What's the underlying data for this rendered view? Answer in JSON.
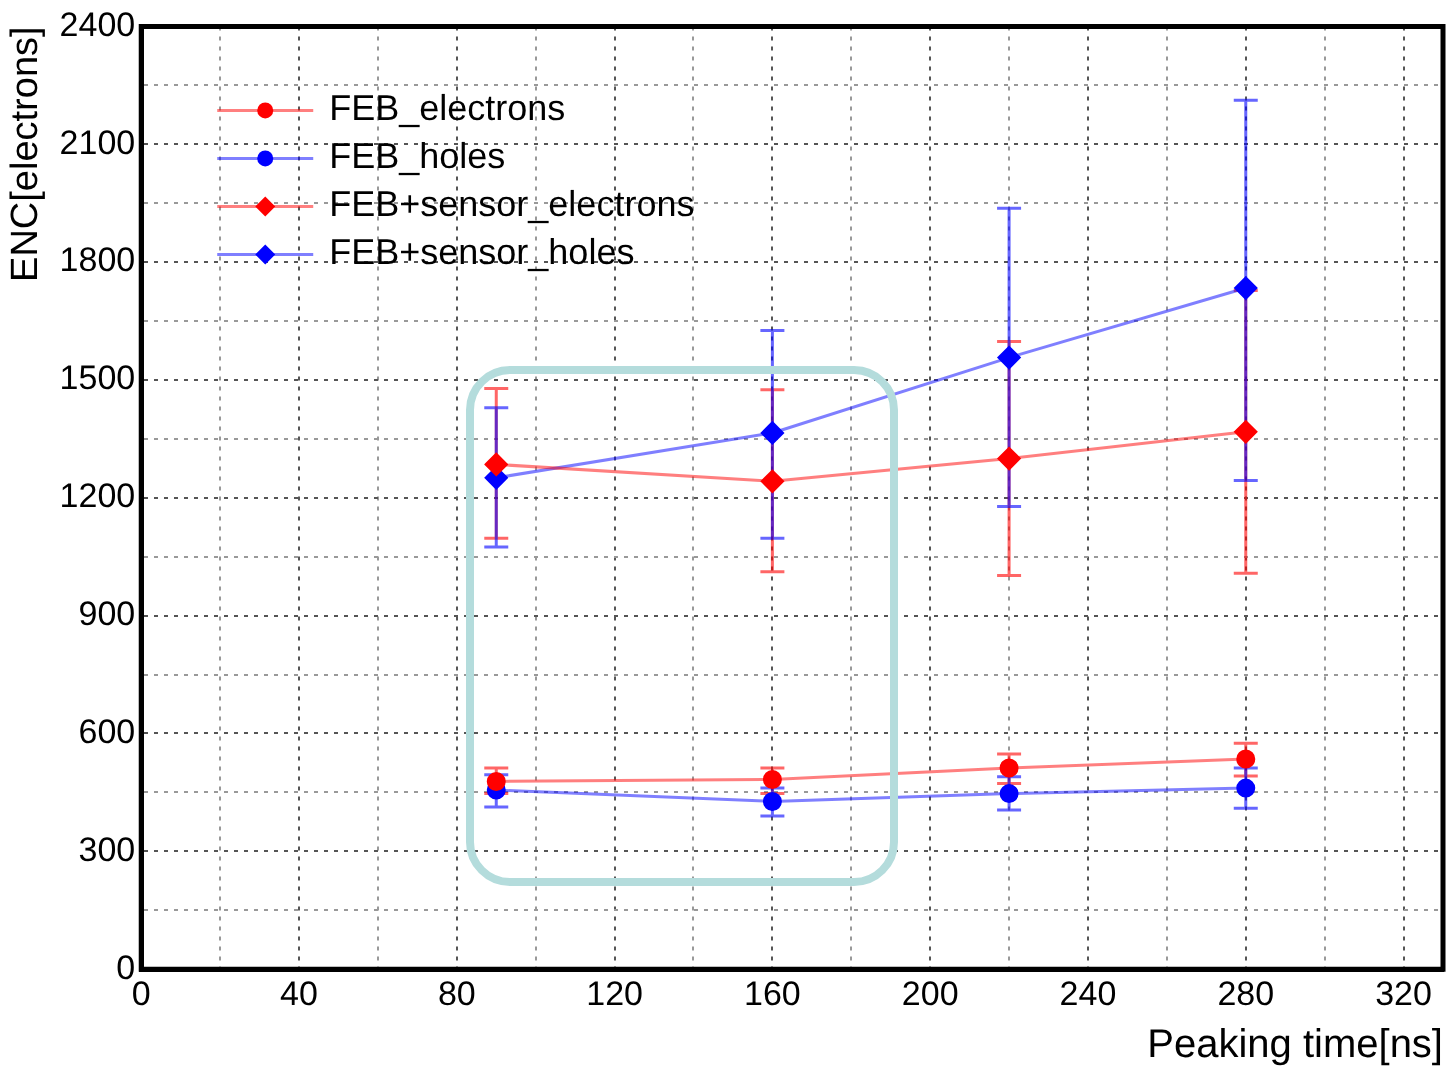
{
  "chart_data": {
    "type": "line",
    "xlabel": "Peaking time[ns]",
    "ylabel": "ENC[electrons]",
    "x": [
      90,
      160,
      220,
      280
    ],
    "series": [
      {
        "name": "FEB_electrons",
        "color": "#ff0000",
        "marker": "circle",
        "values": [
          478,
          483,
          512,
          535
        ],
        "errors": [
          [
            447,
            512
          ],
          [
            447,
            512
          ],
          [
            473,
            548
          ],
          [
            492,
            575
          ]
        ]
      },
      {
        "name": "FEB_holes",
        "color": "#0000ff",
        "marker": "circle",
        "values": [
          456,
          427,
          447,
          461
        ],
        "errors": [
          [
            413,
            495
          ],
          [
            390,
            461
          ],
          [
            405,
            490
          ],
          [
            410,
            512
          ]
        ]
      },
      {
        "name": "FEB+sensor_electrons",
        "color": "#ff0000",
        "marker": "diamond",
        "values": [
          1285,
          1242,
          1300,
          1368
        ],
        "errors": [
          [
            1097,
            1478
          ],
          [
            1012,
            1475
          ],
          [
            1002,
            1598
          ],
          [
            1008,
            1728
          ]
        ]
      },
      {
        "name": "FEB+sensor_holes",
        "color": "#0000ff",
        "marker": "diamond",
        "values": [
          1251,
          1365,
          1557,
          1734
        ],
        "errors": [
          [
            1075,
            1429
          ],
          [
            1097,
            1626
          ],
          [
            1178,
            1937
          ],
          [
            1244,
            2212
          ]
        ]
      }
    ],
    "xlim": [
      0,
      330
    ],
    "xticks": [
      0,
      {
        "value": 20,
        "label": null
      },
      40,
      {
        "value": 60,
        "label": null
      },
      80,
      {
        "value": 100,
        "label": null
      },
      120,
      {
        "value": 140,
        "label": null
      },
      160,
      {
        "value": 180,
        "label": null
      },
      200,
      {
        "value": 220,
        "label": null
      },
      240,
      {
        "value": 260,
        "label": null
      },
      280,
      {
        "value": 300,
        "label": null
      },
      320
    ],
    "ylim": [
      0,
      2400
    ],
    "yticks": [
      0,
      {
        "value": 150,
        "label": null
      },
      300,
      {
        "value": 450,
        "label": null
      },
      600,
      {
        "value": 750,
        "label": null
      },
      900,
      {
        "value": 1050,
        "label": null
      },
      1200,
      {
        "value": 1350,
        "label": null
      },
      1500,
      {
        "value": 1650,
        "label": null
      },
      1800,
      {
        "value": 1950,
        "label": null
      },
      2100,
      {
        "value": 2250,
        "label": null
      },
      2400
    ],
    "grid": true,
    "legend": "top left",
    "line_style": "solid"
  }
}
